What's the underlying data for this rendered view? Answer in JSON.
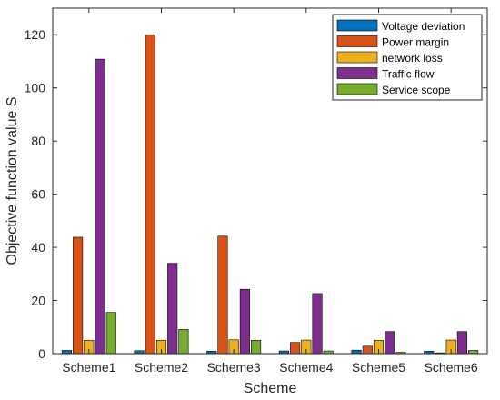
{
  "chart_data": {
    "type": "bar",
    "title": "",
    "xlabel": "Scheme",
    "ylabel": "Objective function value  S",
    "categories": [
      "Scheme1",
      "Scheme2",
      "Scheme3",
      "Scheme4",
      "Scheme5",
      "Scheme6"
    ],
    "ylim": [
      0,
      130
    ],
    "yticks": [
      0,
      20,
      40,
      60,
      80,
      100,
      120
    ],
    "grid": false,
    "legend_position": "top-right",
    "series": [
      {
        "name": "Voltage deviation",
        "color": "#0072BD",
        "values": [
          1.2,
          1.1,
          0.9,
          1.0,
          1.3,
          0.9
        ]
      },
      {
        "name": "Power margin",
        "color": "#D95319",
        "values": [
          43.8,
          120.0,
          44.2,
          4.2,
          2.8,
          0.3
        ]
      },
      {
        "name": "network loss",
        "color": "#EDB120",
        "values": [
          5.0,
          5.0,
          5.2,
          5.1,
          5.0,
          5.1
        ]
      },
      {
        "name": "Traffic flow",
        "color": "#7E2F8E",
        "values": [
          110.8,
          34.0,
          24.2,
          22.6,
          8.3,
          8.3
        ]
      },
      {
        "name": "Service scope",
        "color": "#77AC30",
        "values": [
          15.5,
          9.1,
          5.0,
          1.0,
          0.5,
          1.2
        ]
      }
    ]
  }
}
